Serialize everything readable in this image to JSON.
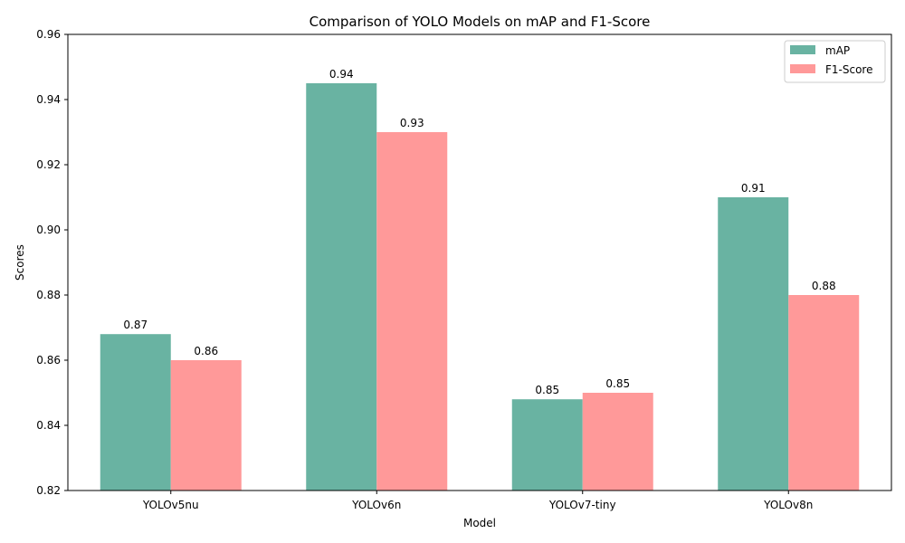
{
  "chart_data": {
    "type": "bar",
    "title": "Comparison of YOLO Models on mAP and F1-Score",
    "xlabel": "Model",
    "ylabel": "Scores",
    "categories": [
      "YOLOv5nu",
      "YOLOv6n",
      "YOLOv7-tiny",
      "YOLOv8n"
    ],
    "series": [
      {
        "name": "mAP",
        "color": "#69b3a2",
        "values": [
          0.868,
          0.945,
          0.848,
          0.91
        ],
        "labels": [
          "0.87",
          "0.94",
          "0.85",
          "0.91"
        ]
      },
      {
        "name": "F1-Score",
        "color": "#ff9999",
        "values": [
          0.86,
          0.93,
          0.85,
          0.88
        ],
        "labels": [
          "0.86",
          "0.93",
          "0.85",
          "0.88"
        ]
      }
    ],
    "ylim": [
      0.82,
      0.96
    ],
    "yticks": [
      "0.82",
      "0.84",
      "0.86",
      "0.88",
      "0.90",
      "0.92",
      "0.94",
      "0.96"
    ],
    "grid": false,
    "legend_position": "top-right"
  }
}
